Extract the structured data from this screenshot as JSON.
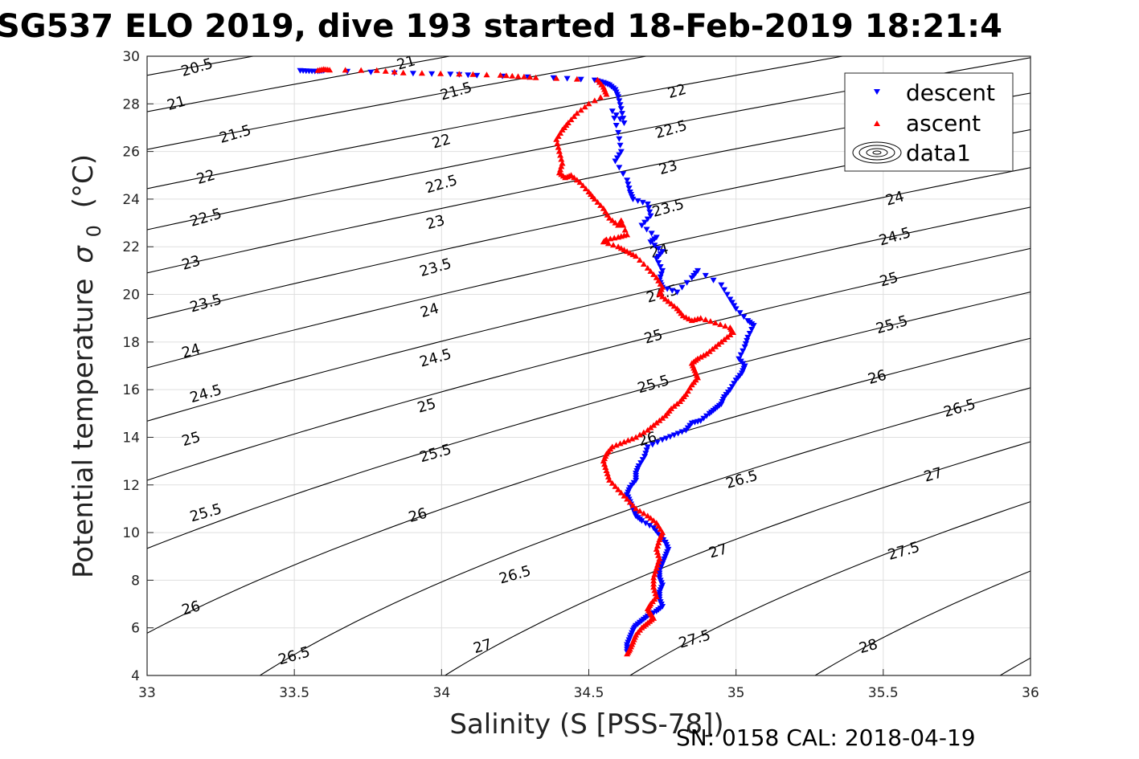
{
  "chart_data": {
    "type": "scatter",
    "title": "SG537 ELO 2019, dive 193 started 18-Feb-2019 18:21:4",
    "xlabel": "Salinity (S [PSS-78])",
    "ylabel": "Potential temperature",
    "ylabel_symbol": "σ",
    "ylabel_sub": "0",
    "ylabel_unit": "(°C)",
    "xlim": [
      33,
      36
    ],
    "ylim": [
      4,
      30
    ],
    "x_ticks": [
      33,
      33.5,
      34,
      34.5,
      35,
      35.5,
      36
    ],
    "x_tick_labels": [
      "33",
      "33.5",
      "34",
      "34.5",
      "35",
      "35.5",
      "36"
    ],
    "y_ticks": [
      4,
      6,
      8,
      10,
      12,
      14,
      16,
      18,
      20,
      22,
      24,
      26,
      28,
      30
    ],
    "y_tick_labels": [
      "4",
      "6",
      "8",
      "10",
      "12",
      "14",
      "16",
      "18",
      "20",
      "22",
      "24",
      "26",
      "28",
      "30"
    ],
    "grid": true,
    "legend": {
      "position": "top-right",
      "entries": [
        {
          "label": "descent",
          "marker": "down-triangle",
          "color": "#0000ff"
        },
        {
          "label": "ascent",
          "marker": "up-triangle",
          "color": "#ff0000"
        },
        {
          "label": "data1",
          "marker": "contour-ellipses",
          "color": "#000000"
        }
      ]
    },
    "contours": {
      "color": "#000000",
      "levels": [
        20.5,
        21,
        21.5,
        22,
        22.5,
        23,
        23.5,
        24,
        24.5,
        25,
        25.5,
        26,
        26.5,
        27,
        27.5,
        28,
        28.5
      ],
      "labels": [
        {
          "text": "20.5",
          "s": 33.17,
          "t": 29.5
        },
        {
          "text": "21",
          "s": 33.1,
          "t": 28.0
        },
        {
          "text": "21.5",
          "s": 33.3,
          "t": 26.7
        },
        {
          "text": "22",
          "s": 33.2,
          "t": 24.9
        },
        {
          "text": "22.5",
          "s": 33.2,
          "t": 23.2
        },
        {
          "text": "23",
          "s": 33.15,
          "t": 21.3
        },
        {
          "text": "23.5",
          "s": 33.2,
          "t": 19.6
        },
        {
          "text": "24",
          "s": 33.15,
          "t": 17.6
        },
        {
          "text": "24.5",
          "s": 33.2,
          "t": 15.8
        },
        {
          "text": "25",
          "s": 33.15,
          "t": 13.9
        },
        {
          "text": "25.5",
          "s": 33.2,
          "t": 10.8
        },
        {
          "text": "26",
          "s": 33.15,
          "t": 6.8
        },
        {
          "text": "26.5",
          "s": 33.5,
          "t": 4.8
        },
        {
          "text": "21",
          "s": 33.88,
          "t": 29.7
        },
        {
          "text": "21.5",
          "s": 34.05,
          "t": 28.5
        },
        {
          "text": "22",
          "s": 34.0,
          "t": 26.4
        },
        {
          "text": "22.5",
          "s": 34.0,
          "t": 24.6
        },
        {
          "text": "23",
          "s": 33.98,
          "t": 23.0
        },
        {
          "text": "23.5",
          "s": 33.98,
          "t": 21.1
        },
        {
          "text": "24",
          "s": 33.96,
          "t": 19.3
        },
        {
          "text": "24.5",
          "s": 33.98,
          "t": 17.3
        },
        {
          "text": "25",
          "s": 33.95,
          "t": 15.3
        },
        {
          "text": "25.5",
          "s": 33.98,
          "t": 13.3
        },
        {
          "text": "26",
          "s": 33.92,
          "t": 10.7
        },
        {
          "text": "26.5",
          "s": 34.25,
          "t": 8.2
        },
        {
          "text": "27",
          "s": 34.14,
          "t": 5.2
        },
        {
          "text": "22",
          "s": 34.8,
          "t": 28.5
        },
        {
          "text": "22.5",
          "s": 34.78,
          "t": 26.9
        },
        {
          "text": "23",
          "s": 34.77,
          "t": 25.3
        },
        {
          "text": "23.5",
          "s": 34.77,
          "t": 23.6
        },
        {
          "text": "24",
          "s": 34.74,
          "t": 21.8
        },
        {
          "text": "24.5",
          "s": 34.75,
          "t": 20.0
        },
        {
          "text": "25",
          "s": 34.72,
          "t": 18.2
        },
        {
          "text": "25.5",
          "s": 34.72,
          "t": 16.2
        },
        {
          "text": "26",
          "s": 34.7,
          "t": 13.9
        },
        {
          "text": "26.5",
          "s": 35.02,
          "t": 12.2
        },
        {
          "text": "27",
          "s": 34.94,
          "t": 9.2
        },
        {
          "text": "27.5",
          "s": 34.86,
          "t": 5.5
        },
        {
          "text": "24",
          "s": 35.54,
          "t": 24.0
        },
        {
          "text": "24.5",
          "s": 35.54,
          "t": 22.4
        },
        {
          "text": "25",
          "s": 35.52,
          "t": 20.6
        },
        {
          "text": "25.5",
          "s": 35.53,
          "t": 18.7
        },
        {
          "text": "26",
          "s": 35.48,
          "t": 16.5
        },
        {
          "text": "26.5",
          "s": 35.76,
          "t": 15.2
        },
        {
          "text": "27",
          "s": 35.67,
          "t": 12.4
        },
        {
          "text": "27.5",
          "s": 35.57,
          "t": 9.2
        },
        {
          "text": "28",
          "s": 35.45,
          "t": 5.2
        }
      ]
    },
    "series": [
      {
        "name": "descent",
        "marker": "down-triangle",
        "color": "#0000ff",
        "salinity": [
          33.52,
          33.55,
          33.58,
          33.6,
          33.84,
          34.03,
          34.12,
          34.38,
          34.52,
          34.55,
          34.57,
          34.59,
          34.6,
          34.61,
          34.62,
          34.58,
          34.6,
          34.61,
          34.59,
          34.63,
          34.64,
          34.65,
          34.7,
          34.71,
          34.68,
          34.73,
          34.71,
          34.75,
          34.73,
          34.75,
          34.74,
          34.75,
          34.8,
          34.85,
          34.87,
          34.95,
          34.98,
          35.0,
          35.04,
          35.06,
          35.04,
          35.03,
          35.01,
          35.03,
          35.02,
          35.0,
          34.98,
          34.96,
          34.95,
          34.93,
          34.91,
          34.88,
          34.85,
          34.83,
          34.79,
          34.75,
          34.7,
          34.69,
          34.67,
          34.66,
          34.66,
          34.64,
          34.63,
          34.64,
          34.65,
          34.66,
          34.68,
          34.72,
          34.74,
          34.76,
          34.77,
          34.76,
          34.75,
          34.74,
          34.74,
          34.75,
          34.74,
          34.74,
          34.75,
          34.73,
          34.7,
          34.68,
          34.66,
          34.65,
          34.64,
          34.63,
          34.63
        ],
        "temperature": [
          29.4,
          29.38,
          29.37,
          29.4,
          29.3,
          29.25,
          29.2,
          29.1,
          29.0,
          28.9,
          28.8,
          28.6,
          28.3,
          27.8,
          27.2,
          27.7,
          26.8,
          26.0,
          25.6,
          24.8,
          24.3,
          24.0,
          23.8,
          23.3,
          22.9,
          22.4,
          22.2,
          21.8,
          21.5,
          21.0,
          20.6,
          20.3,
          20.1,
          20.7,
          21.0,
          20.4,
          19.8,
          19.4,
          18.9,
          18.7,
          18.2,
          17.8,
          17.3,
          17.0,
          16.7,
          16.4,
          16.0,
          15.7,
          15.4,
          15.2,
          15.0,
          14.7,
          14.6,
          14.3,
          14.1,
          13.9,
          13.6,
          13.2,
          12.8,
          12.5,
          12.2,
          11.9,
          11.6,
          11.3,
          11.0,
          10.7,
          10.5,
          10.2,
          9.9,
          9.6,
          9.3,
          9.0,
          8.7,
          8.4,
          8.1,
          7.8,
          7.5,
          7.2,
          6.9,
          6.7,
          6.5,
          6.3,
          6.1,
          5.9,
          5.6,
          5.3,
          5.0
        ]
      },
      {
        "name": "ascent",
        "marker": "up-triangle",
        "color": "#ff0000",
        "salinity": [
          33.58,
          33.6,
          33.62,
          33.78,
          33.87,
          34.06,
          34.2,
          34.26,
          34.32,
          34.53,
          34.55,
          34.56,
          34.5,
          34.46,
          34.43,
          34.41,
          34.39,
          34.4,
          34.41,
          34.4,
          34.42,
          34.44,
          34.47,
          34.5,
          34.52,
          34.55,
          34.57,
          34.6,
          34.61,
          34.63,
          34.6,
          34.56,
          34.55,
          34.6,
          34.63,
          34.66,
          34.7,
          34.73,
          34.75,
          34.74,
          34.77,
          34.8,
          34.82,
          34.85,
          34.88,
          34.93,
          34.98,
          34.99,
          34.96,
          34.93,
          34.9,
          34.87,
          34.85,
          34.86,
          34.87,
          34.85,
          34.83,
          34.81,
          34.78,
          34.76,
          34.73,
          34.7,
          34.66,
          34.62,
          34.58,
          34.56,
          34.55,
          34.56,
          34.57,
          34.6,
          34.63,
          34.66,
          34.7,
          34.73,
          34.75,
          34.74,
          34.73,
          34.74,
          34.73,
          34.72,
          34.72,
          34.73,
          34.71,
          34.7,
          34.71,
          34.72,
          34.7,
          34.68,
          34.66,
          34.65,
          34.64,
          34.63
        ],
        "temperature": [
          29.4,
          29.45,
          29.42,
          29.4,
          29.3,
          29.25,
          29.2,
          29.15,
          29.1,
          29.0,
          28.7,
          28.4,
          28.0,
          27.6,
          27.2,
          26.9,
          26.5,
          26.0,
          25.5,
          25.1,
          24.9,
          25.0,
          24.7,
          24.3,
          24.0,
          23.6,
          23.2,
          22.9,
          23.1,
          22.5,
          22.4,
          22.3,
          22.2,
          22.0,
          21.8,
          21.6,
          21.1,
          20.7,
          20.3,
          20.0,
          19.7,
          19.4,
          19.1,
          18.9,
          19.0,
          18.8,
          18.6,
          18.4,
          18.1,
          17.8,
          17.5,
          17.3,
          17.1,
          16.8,
          16.5,
          16.2,
          15.8,
          15.5,
          15.2,
          14.9,
          14.6,
          14.3,
          14.0,
          13.8,
          13.6,
          13.3,
          13.0,
          12.6,
          12.2,
          11.8,
          11.4,
          11.0,
          10.7,
          10.4,
          10.0,
          9.7,
          9.3,
          8.9,
          8.5,
          8.1,
          7.7,
          7.3,
          7.0,
          6.8,
          6.6,
          6.4,
          6.2,
          6.0,
          5.7,
          5.4,
          5.1,
          4.9
        ]
      }
    ]
  },
  "footer": {
    "text": "SN: 0158  CAL: 2018-04-19"
  }
}
